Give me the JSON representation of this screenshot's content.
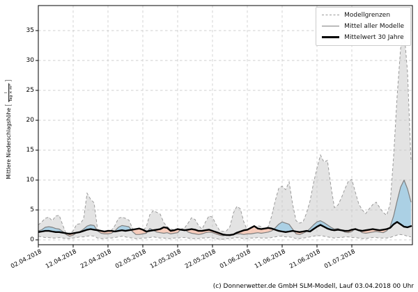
{
  "page": {
    "footer": "(c) Donnerwetter.de GmbH SLM-Modell, Lauf 03.04.2018 00 Uhr"
  },
  "chart": {
    "ylabel": {
      "main": "Mittlere Niederschlagshöhe",
      "bracket_open": "[",
      "frac_num": "l",
      "frac_den": "Tag × m²",
      "bracket_close": "]"
    },
    "legend": {
      "items": [
        {
          "label": "Modellgrenzen",
          "style": "dashed-gray"
        },
        {
          "label": "Mittel aller Modelle",
          "style": "solid-gray"
        },
        {
          "label": "Mittelwert 30 Jahre",
          "style": "thick-black"
        }
      ]
    }
  },
  "chart_data": {
    "type": "line",
    "title": "",
    "xlabel": "",
    "ylabel": "Mittlere Niederschlagshöhe [l/(Tag × m²)]",
    "grid": true,
    "legend_position": "upper right",
    "ylim": [
      0,
      39
    ],
    "y_ticks": [
      0,
      5,
      10,
      15,
      20,
      25,
      30,
      35
    ],
    "x_tick_labels": [
      "02.04.2018",
      "12.04.2018",
      "22.04.2018",
      "02.05.2018",
      "12.05.2018",
      "22.05.2018",
      "01.06.2018",
      "11.06.2018",
      "21.06.2018",
      "01.07.2018"
    ],
    "x_tick_days": [
      0,
      10,
      20,
      30,
      40,
      50,
      60,
      70,
      80,
      90
    ],
    "x_unit": "Tage ab 02.04.2018, 1 Punkt pro Tag",
    "colors": {
      "band_fill": "#c8c8c8",
      "band_edge": "#9a9a9a",
      "above_fill": "#a8cfe4",
      "below_fill": "#f5c9b8",
      "model_line": "#7f7f7f",
      "mean_line": "#000000",
      "grid": "#cfcfcf"
    },
    "series": [
      {
        "name": "Modellgrenzen max",
        "role": "upper-bound",
        "values": [
          2.5,
          3.0,
          3.6,
          3.8,
          3.2,
          4.0,
          4.1,
          2.5,
          1.0,
          1.2,
          1.5,
          2.6,
          2.7,
          3.5,
          7.8,
          6.8,
          6.2,
          1.8,
          1.4,
          1.3,
          1.4,
          1.6,
          2.4,
          3.6,
          3.8,
          3.6,
          3.3,
          2.0,
          1.2,
          1.3,
          1.5,
          2.2,
          4.2,
          4.9,
          4.6,
          4.3,
          2.9,
          2.2,
          1.8,
          1.7,
          1.6,
          1.8,
          2.0,
          2.8,
          3.7,
          3.4,
          2.4,
          1.8,
          3.0,
          4.0,
          3.8,
          2.6,
          1.6,
          1.4,
          1.5,
          2.2,
          4.5,
          5.6,
          5.2,
          3.0,
          1.6,
          1.4,
          1.7,
          2.4,
          2.2,
          1.8,
          2.2,
          4.0,
          6.5,
          8.6,
          9.0,
          8.4,
          9.7,
          6.0,
          3.2,
          2.8,
          3.0,
          4.5,
          6.5,
          9.5,
          12.0,
          14.2,
          13.0,
          13.3,
          9.0,
          5.4,
          5.8,
          7.0,
          8.5,
          9.8,
          10.1,
          8.0,
          6.0,
          5.0,
          4.4,
          5.2,
          5.9,
          6.3,
          5.4,
          4.6,
          4.1,
          6.0,
          14.0,
          24.0,
          32.0,
          35.0,
          28.0,
          13.0
        ]
      },
      {
        "name": "Modellgrenzen min",
        "role": "lower-bound",
        "values": [
          0.6,
          0.5,
          0.4,
          0.4,
          0.3,
          0.3,
          0.4,
          0.3,
          0.2,
          0.2,
          0.3,
          0.4,
          0.5,
          0.5,
          0.6,
          0.7,
          0.6,
          0.3,
          0.2,
          0.2,
          0.3,
          0.3,
          0.4,
          0.5,
          0.6,
          0.5,
          0.4,
          0.3,
          0.2,
          0.2,
          0.3,
          0.3,
          0.4,
          0.5,
          0.4,
          0.3,
          0.3,
          0.2,
          0.2,
          0.3,
          0.3,
          0.4,
          0.4,
          0.3,
          0.2,
          0.2,
          0.2,
          0.3,
          0.3,
          0.4,
          0.3,
          0.2,
          0.1,
          0.1,
          0.2,
          0.2,
          0.3,
          0.4,
          0.3,
          0.2,
          0.2,
          0.3,
          0.3,
          0.4,
          0.3,
          0.3,
          0.3,
          0.4,
          0.5,
          0.6,
          0.6,
          0.5,
          0.5,
          0.4,
          0.2,
          0.2,
          0.3,
          0.4,
          0.5,
          0.6,
          0.7,
          0.7,
          0.6,
          0.5,
          0.4,
          0.3,
          0.4,
          0.4,
          0.5,
          0.5,
          0.4,
          0.4,
          0.3,
          0.2,
          0.2,
          0.3,
          0.4,
          0.4,
          0.3,
          0.3,
          0.3,
          0.4,
          0.6,
          0.8,
          0.9,
          0.8,
          0.6,
          0.5
        ]
      },
      {
        "name": "Mittel aller Modelle",
        "role": "model-mean",
        "values": [
          1.5,
          1.7,
          2.1,
          2.2,
          2.1,
          1.9,
          1.8,
          1.4,
          0.9,
          0.6,
          0.8,
          1.2,
          1.4,
          1.8,
          2.3,
          2.5,
          2.4,
          1.5,
          1.1,
          1.0,
          1.0,
          1.1,
          1.5,
          2.1,
          2.4,
          2.3,
          2.2,
          1.4,
          0.9,
          0.9,
          1.0,
          1.1,
          1.9,
          1.6,
          1.3,
          1.2,
          1.1,
          1.2,
          1.0,
          1.1,
          1.2,
          1.8,
          1.7,
          1.3,
          1.1,
          1.0,
          0.9,
          1.0,
          1.2,
          1.3,
          1.2,
          1.0,
          0.8,
          0.7,
          0.8,
          0.7,
          0.9,
          1.0,
          1.0,
          0.9,
          1.0,
          1.0,
          1.1,
          1.2,
          1.1,
          1.2,
          1.3,
          1.5,
          2.0,
          2.6,
          3.0,
          2.8,
          2.6,
          1.8,
          1.0,
          0.9,
          1.1,
          1.4,
          1.9,
          2.5,
          3.0,
          3.2,
          2.9,
          2.5,
          2.1,
          1.8,
          1.9,
          1.6,
          1.3,
          1.2,
          1.4,
          1.9,
          1.6,
          1.2,
          1.1,
          1.2,
          1.3,
          1.4,
          1.3,
          1.2,
          1.5,
          2.2,
          4.0,
          6.5,
          8.8,
          10.0,
          8.5,
          6.3
        ]
      },
      {
        "name": "Mittelwert 30 Jahre",
        "role": "climate-mean",
        "values": [
          1.3,
          1.4,
          1.5,
          1.5,
          1.4,
          1.3,
          1.3,
          1.2,
          1.1,
          1.0,
          1.1,
          1.2,
          1.3,
          1.5,
          1.7,
          1.8,
          1.7,
          1.6,
          1.5,
          1.4,
          1.5,
          1.5,
          1.4,
          1.5,
          1.6,
          1.5,
          1.6,
          1.7,
          1.8,
          1.9,
          1.7,
          1.4,
          1.5,
          1.6,
          1.7,
          1.8,
          2.1,
          2.0,
          1.5,
          1.6,
          1.8,
          1.7,
          1.6,
          1.7,
          1.8,
          1.7,
          1.5,
          1.5,
          1.6,
          1.7,
          1.5,
          1.3,
          1.1,
          0.9,
          0.8,
          0.8,
          0.9,
          1.2,
          1.4,
          1.6,
          1.7,
          2.0,
          2.3,
          1.9,
          1.8,
          1.9,
          2.0,
          1.9,
          1.7,
          1.5,
          1.4,
          1.3,
          1.4,
          1.5,
          1.4,
          1.3,
          1.4,
          1.5,
          1.4,
          1.8,
          2.2,
          2.5,
          2.2,
          1.9,
          1.7,
          1.6,
          1.7,
          1.6,
          1.5,
          1.5,
          1.7,
          1.8,
          1.6,
          1.5,
          1.6,
          1.7,
          1.8,
          1.7,
          1.6,
          1.7,
          1.8,
          2.0,
          2.6,
          3.0,
          2.6,
          2.2,
          2.1,
          2.3
        ]
      }
    ]
  }
}
